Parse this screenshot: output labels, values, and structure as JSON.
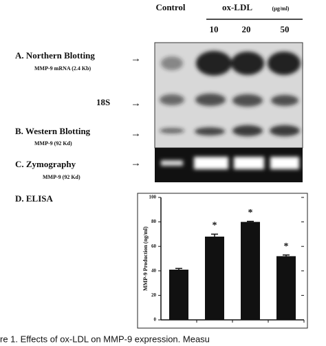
{
  "header": {
    "control": "Control",
    "treatment": "ox-LDL",
    "unit": "(μg/ml)",
    "doses": [
      "10",
      "20",
      "50"
    ]
  },
  "panels": [
    {
      "title": "A. Northern Blotting",
      "subtitle": "MMP-9 mRNA (2.4 Kb)"
    },
    {
      "title": "18S"
    },
    {
      "title": "B. Western Blotting",
      "subtitle": "MMP-9 (92 Kd)"
    },
    {
      "title": "C. Zymography",
      "subtitle": "MMP-9 (92 Kd)"
    },
    {
      "title": "D. ELISA"
    }
  ],
  "chart_data": {
    "type": "bar",
    "ylabel": "MMP-9 Production (ng/ml)",
    "categories": [
      null,
      null,
      null,
      null
    ],
    "values": [
      41,
      68,
      80,
      52
    ],
    "errors": [
      1,
      2,
      0.5,
      1
    ],
    "markers": [
      null,
      "*",
      "*",
      "*"
    ],
    "color": "#111111",
    "ylim": [
      0,
      100
    ],
    "yticks": [
      0,
      20,
      40,
      60,
      80,
      100
    ]
  },
  "caption": "re 1. Effects of ox-LDL on MMP-9 expression. Measu"
}
